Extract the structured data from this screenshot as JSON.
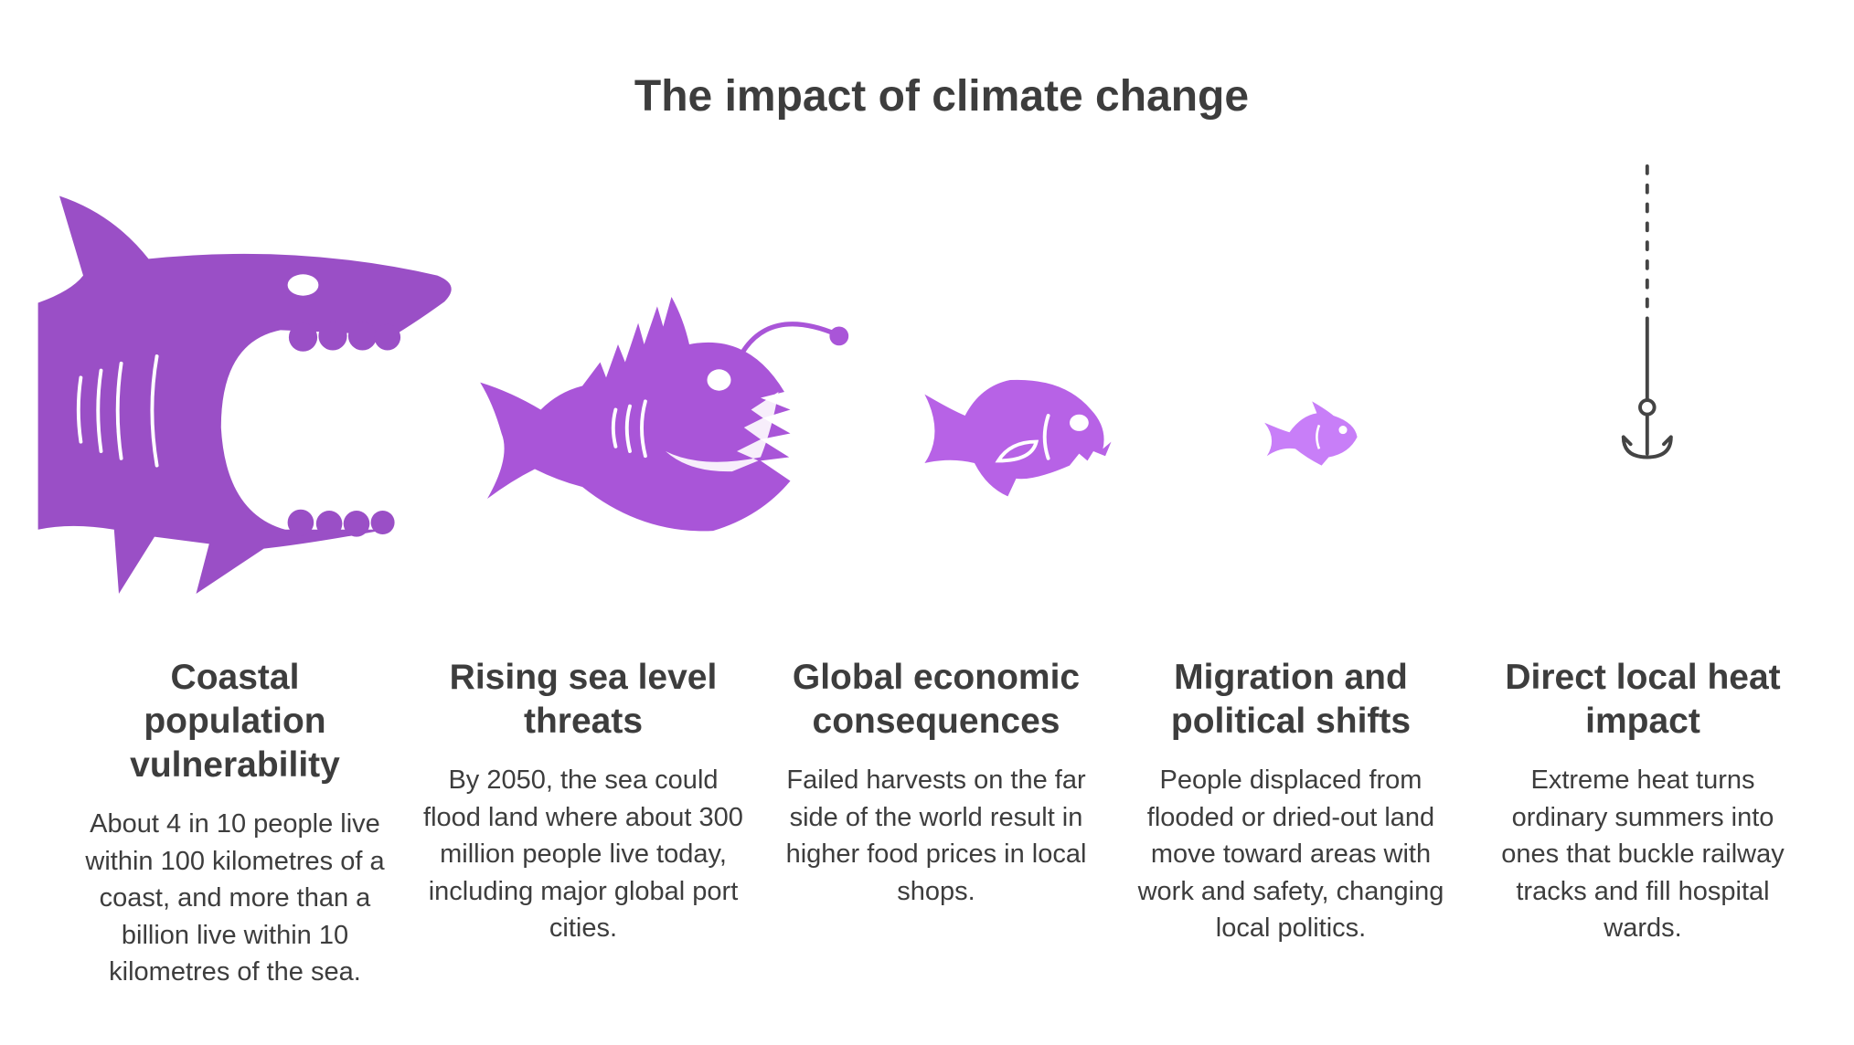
{
  "title": "The impact of climate change",
  "items": [
    {
      "heading": "Coastal population vulnerability",
      "text": "About 4 in 10 people live within 100 kilometres of a coast, and more than a billion live within 10 kilometres of the sea."
    },
    {
      "heading": "Rising sea level threats",
      "text": "By 2050, the sea could flood land where about 300 million people live today, including major global port cities."
    },
    {
      "heading": "Global economic consequences",
      "text": "Failed harvests on the far side of the world result in higher food prices in local shops."
    },
    {
      "heading": "Migration and political shifts",
      "text": "People displaced from flooded or dried-out land move toward areas with work and safety, changing local politics."
    },
    {
      "heading": "Direct local heat impact",
      "text": "Extreme heat turns ordinary summers into ones that buckle railway tracks and fill hospital wards."
    }
  ]
}
